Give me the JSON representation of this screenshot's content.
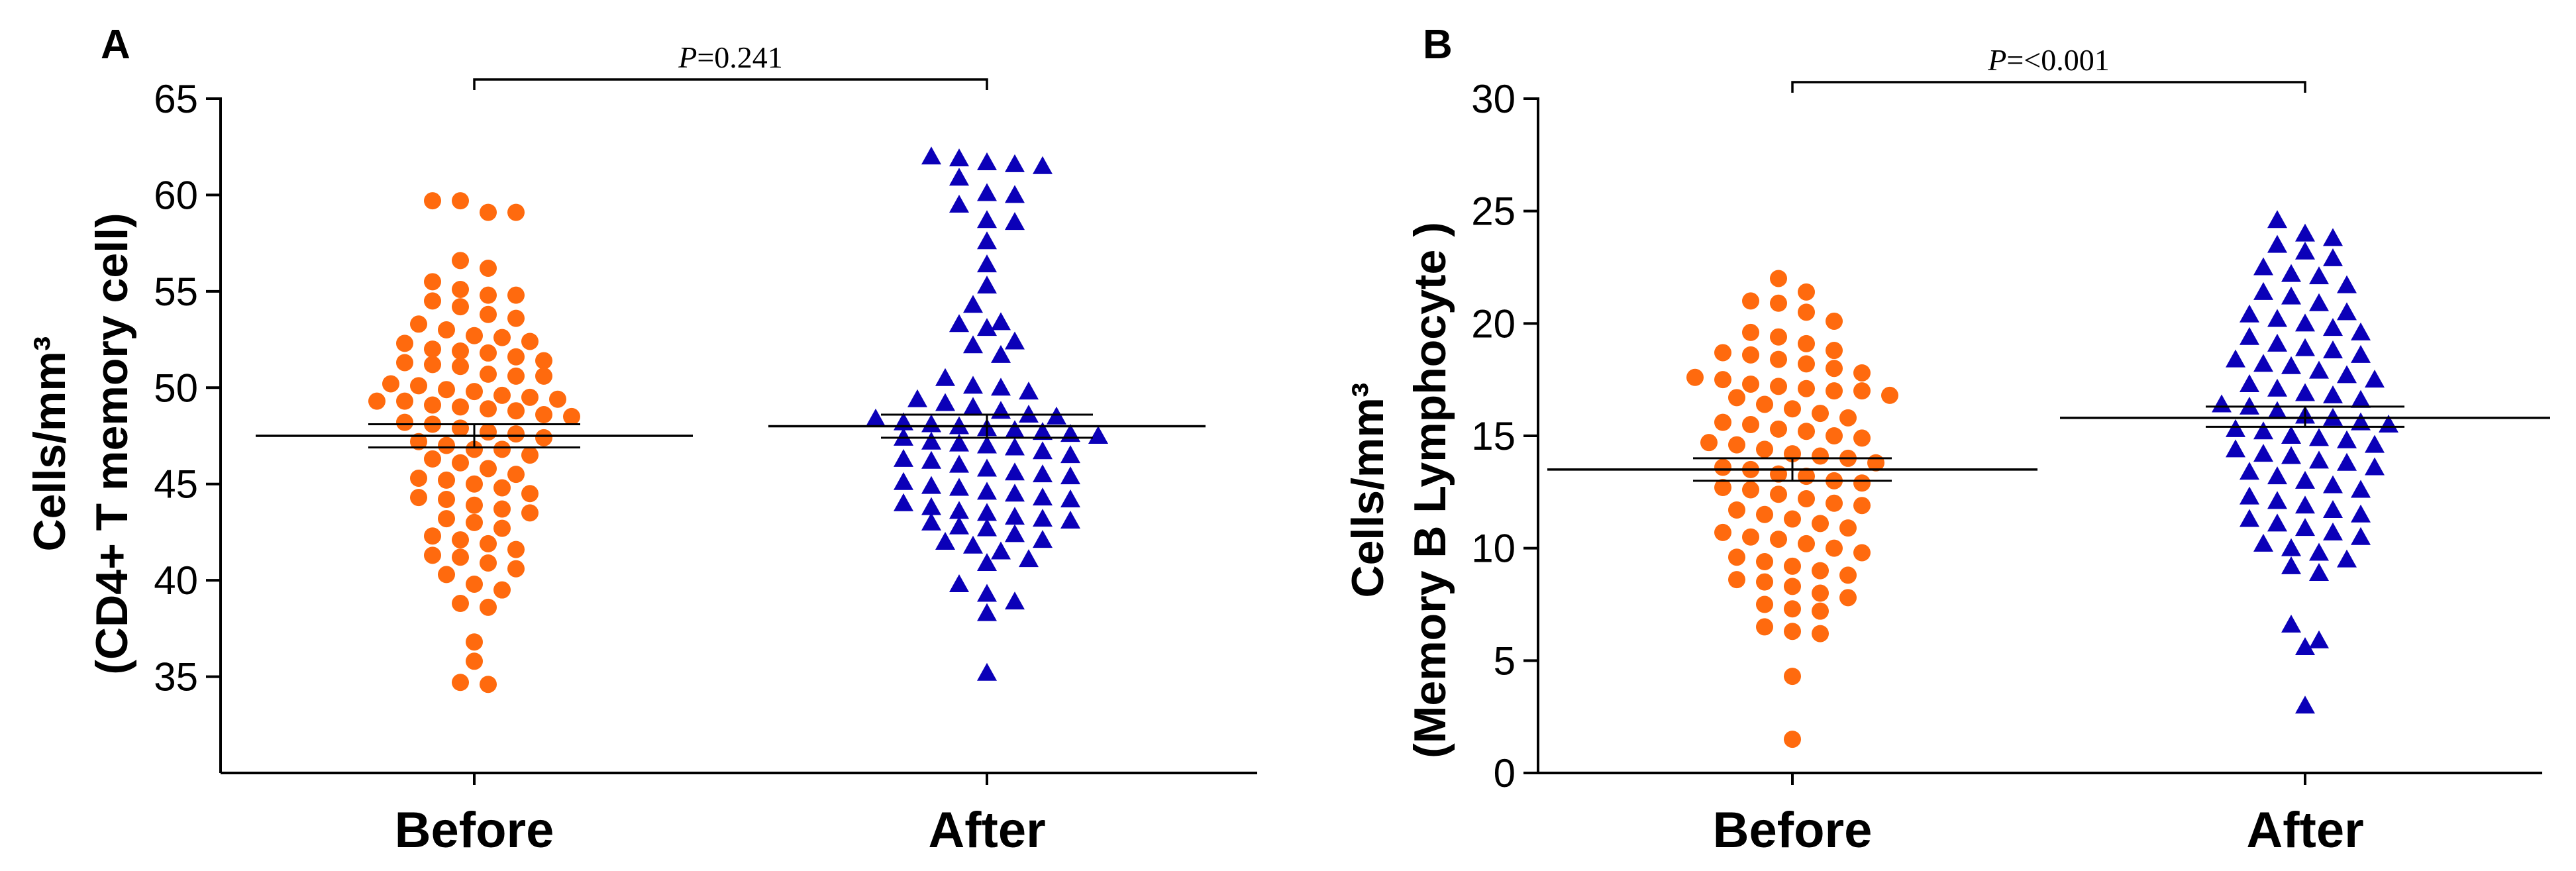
{
  "colors": {
    "before": "#ff6a0e",
    "after": "#0b00b8",
    "axis": "#000000"
  },
  "chart_data": [
    {
      "panel_label": "A",
      "type": "scatter",
      "subtype": "dot-plot-mean-sem",
      "ylabel_line1": "Cells/mm³",
      "ylabel_line2": "(CD4+ T memory cell)",
      "categories": [
        "Before",
        "After"
      ],
      "ylim": [
        30,
        65
      ],
      "yticks": [
        35,
        40,
        45,
        50,
        55,
        60,
        65
      ],
      "ytick_labels": [
        "35",
        "40",
        "45",
        "50",
        "55",
        "60",
        "65"
      ],
      "grid": false,
      "comparison": {
        "prefix": "P",
        "text": "=0.241",
        "from": "Before",
        "to": "After"
      },
      "series": [
        {
          "name": "Before",
          "marker": "circle",
          "color": "#ff6a0e",
          "mean": 47.5,
          "sem": [
            46.9,
            48.1
          ],
          "values": [
            59.7,
            59.7,
            59.1,
            59.1,
            56.6,
            56.2,
            55.5,
            55.1,
            54.8,
            54.8,
            54.5,
            54.2,
            53.8,
            53.6,
            53.3,
            53.0,
            52.7,
            52.6,
            52.4,
            52.3,
            52.0,
            51.9,
            51.8,
            51.6,
            51.4,
            51.3,
            51.2,
            51.1,
            50.7,
            50.6,
            50.6,
            50.2,
            50.1,
            49.9,
            49.8,
            49.6,
            49.5,
            49.4,
            49.3,
            49.3,
            49.1,
            49.0,
            48.9,
            48.8,
            48.6,
            48.5,
            48.2,
            48.1,
            47.9,
            47.7,
            47.6,
            47.4,
            47.2,
            47.0,
            46.8,
            46.8,
            46.5,
            46.3,
            46.1,
            45.8,
            45.5,
            45.3,
            45.2,
            45.0,
            44.8,
            44.5,
            44.3,
            44.2,
            43.9,
            43.7,
            43.5,
            43.2,
            43.0,
            42.7,
            42.3,
            42.1,
            41.9,
            41.6,
            41.3,
            41.2,
            40.9,
            40.6,
            40.3,
            39.8,
            39.5,
            38.8,
            38.6,
            36.8,
            35.8,
            34.7,
            34.6
          ]
        },
        {
          "name": "After",
          "marker": "triangle",
          "color": "#0b00b8",
          "mean": 48.0,
          "sem": [
            47.4,
            48.6
          ],
          "values": [
            62.0,
            61.9,
            61.7,
            61.6,
            61.5,
            60.9,
            60.1,
            60.0,
            59.5,
            58.7,
            58.6,
            57.6,
            56.4,
            55.3,
            54.3,
            53.4,
            53.3,
            53.1,
            52.4,
            52.2,
            51.7,
            50.5,
            50.1,
            50.0,
            49.8,
            49.4,
            49.2,
            49.0,
            48.8,
            48.6,
            48.5,
            48.4,
            48.2,
            48.1,
            48.0,
            47.9,
            47.8,
            47.7,
            47.6,
            47.5,
            47.4,
            47.2,
            47.1,
            47.0,
            46.9,
            46.7,
            46.5,
            46.3,
            46.2,
            46.0,
            45.8,
            45.6,
            45.5,
            45.4,
            45.1,
            44.9,
            44.8,
            44.6,
            44.5,
            44.3,
            44.2,
            44.0,
            43.8,
            43.6,
            43.5,
            43.3,
            43.2,
            43.1,
            43.0,
            42.8,
            42.7,
            42.4,
            42.1,
            42.0,
            41.8,
            41.5,
            41.1,
            40.9,
            39.8,
            39.3,
            38.9,
            38.3,
            35.2
          ]
        }
      ]
    },
    {
      "panel_label": "B",
      "type": "scatter",
      "subtype": "dot-plot-mean-sem",
      "ylabel_line1": "Cells/mm³",
      "ylabel_line2": "(Memory B Lymphocyte )",
      "categories": [
        "Before",
        "After"
      ],
      "ylim": [
        0,
        30
      ],
      "yticks": [
        0,
        5,
        10,
        15,
        20,
        25,
        30
      ],
      "ytick_labels": [
        "0",
        "5",
        "10",
        "15",
        "20",
        "25",
        "30"
      ],
      "grid": false,
      "comparison": {
        "prefix": "P",
        "text": "=<0.001",
        "from": "Before",
        "to": "After"
      },
      "series": [
        {
          "name": "Before",
          "marker": "circle",
          "color": "#ff6a0e",
          "mean": 13.5,
          "sem": [
            13.0,
            14.0
          ],
          "values": [
            22.0,
            21.4,
            21.0,
            20.9,
            20.5,
            20.1,
            19.6,
            19.4,
            19.1,
            18.8,
            18.7,
            18.6,
            18.4,
            18.2,
            18.0,
            17.8,
            17.6,
            17.5,
            17.3,
            17.2,
            17.1,
            17.0,
            17.0,
            16.8,
            16.7,
            16.4,
            16.2,
            16.0,
            15.8,
            15.6,
            15.5,
            15.3,
            15.2,
            15.0,
            14.9,
            14.7,
            14.6,
            14.4,
            14.2,
            14.1,
            14.0,
            13.8,
            13.6,
            13.5,
            13.3,
            13.2,
            13.0,
            12.9,
            12.7,
            12.6,
            12.4,
            12.2,
            12.0,
            11.9,
            11.7,
            11.5,
            11.3,
            11.1,
            10.9,
            10.7,
            10.5,
            10.4,
            10.2,
            10.0,
            9.8,
            9.6,
            9.4,
            9.2,
            9.0,
            8.8,
            8.6,
            8.5,
            8.3,
            8.0,
            7.8,
            7.5,
            7.3,
            7.2,
            6.5,
            6.3,
            6.2,
            4.3,
            1.5
          ]
        },
        {
          "name": "After",
          "marker": "triangle",
          "color": "#0b00b8",
          "mean": 15.8,
          "sem": [
            15.4,
            16.3
          ],
          "values": [
            24.6,
            24.0,
            23.8,
            23.5,
            23.2,
            22.9,
            22.5,
            22.2,
            22.1,
            21.7,
            21.4,
            21.2,
            20.9,
            20.5,
            20.4,
            20.2,
            20.0,
            19.8,
            19.6,
            19.4,
            19.1,
            18.9,
            18.8,
            18.6,
            18.4,
            18.2,
            18.1,
            17.9,
            17.7,
            17.5,
            17.3,
            17.1,
            16.9,
            16.8,
            16.6,
            16.4,
            16.3,
            16.1,
            15.9,
            15.8,
            15.6,
            15.5,
            15.3,
            15.2,
            15.0,
            14.9,
            14.8,
            14.6,
            14.4,
            14.2,
            14.1,
            13.9,
            13.8,
            13.6,
            13.4,
            13.2,
            13.0,
            12.8,
            12.6,
            12.3,
            12.1,
            11.9,
            11.7,
            11.5,
            11.3,
            11.1,
            10.9,
            10.7,
            10.5,
            10.2,
            10.0,
            9.8,
            9.5,
            9.2,
            8.9,
            6.6,
            5.9,
            5.6,
            3.0
          ]
        }
      ]
    }
  ]
}
